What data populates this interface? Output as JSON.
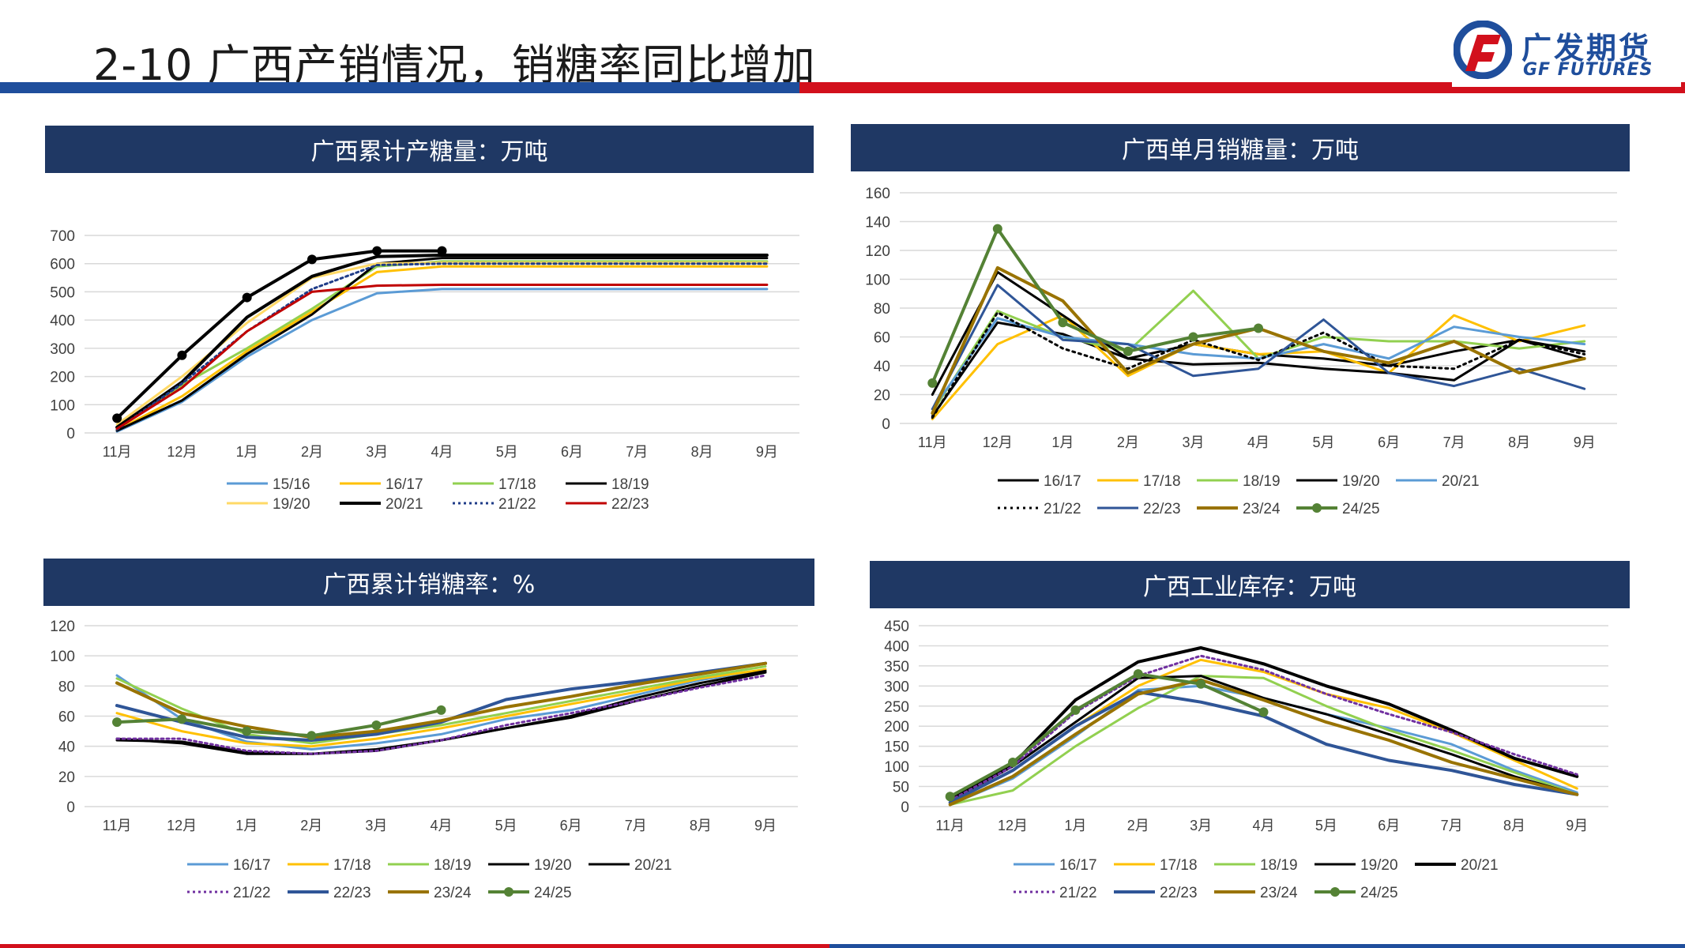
{
  "header": {
    "title": "2-10 广西产销情况，销糖率同比增加",
    "logo_cn": "广发期货",
    "logo_en": "GF FUTURES"
  },
  "colors": {
    "header_blue": "#1f4e9c",
    "header_red": "#d2101c",
    "panel_head": "#1f3864"
  },
  "chart_data": [
    {
      "id": "cum-production",
      "type": "line",
      "title": "广西累计产糖量：万吨",
      "categories": [
        "11月",
        "12月",
        "1月",
        "2月",
        "3月",
        "4月",
        "5月",
        "6月",
        "7月",
        "8月",
        "9月"
      ],
      "ylim": [
        0,
        700
      ],
      "yticks": [
        0,
        100,
        200,
        300,
        400,
        500,
        600,
        700
      ],
      "grid": true,
      "legend": "bottom",
      "series": [
        {
          "name": "15/16",
          "color": "#5b9bd5",
          "width": 3,
          "values": [
            5,
            110,
            270,
            400,
            495,
            510,
            510,
            510,
            510,
            510,
            510
          ]
        },
        {
          "name": "16/17",
          "color": "#ffc000",
          "width": 3,
          "values": [
            10,
            130,
            290,
            430,
            570,
            590,
            590,
            590,
            590,
            590,
            590
          ]
        },
        {
          "name": "17/18",
          "color": "#92d050",
          "width": 3,
          "values": [
            15,
            170,
            300,
            440,
            590,
            608,
            608,
            608,
            608,
            608,
            608
          ]
        },
        {
          "name": "18/19",
          "color": "#000000",
          "width": 3,
          "values": [
            8,
            115,
            280,
            420,
            600,
            620,
            620,
            620,
            620,
            620,
            620
          ]
        },
        {
          "name": "19/20",
          "color": "#ffd966",
          "width": 3,
          "values": [
            30,
            200,
            390,
            550,
            600,
            603,
            603,
            603,
            603,
            603,
            603
          ]
        },
        {
          "name": "20/21",
          "color": "#000000",
          "width": 4,
          "values": [
            20,
            180,
            410,
            555,
            625,
            630,
            630,
            630,
            630,
            630,
            630
          ]
        },
        {
          "name": "21/22",
          "color": "#1f3c88",
          "width": 3,
          "dash": "3,4",
          "values": [
            12,
            175,
            360,
            510,
            595,
            600,
            600,
            600,
            600,
            600,
            600
          ]
        },
        {
          "name": "22/23",
          "color": "#c00000",
          "width": 3,
          "values": [
            15,
            160,
            360,
            500,
            522,
            525,
            525,
            525,
            525,
            525,
            525
          ]
        },
        {
          "name": "",
          "color": "#000000",
          "width": 4,
          "markers": true,
          "legend": false,
          "values": [
            52,
            275,
            480,
            615,
            645,
            645,
            null,
            null,
            null,
            null,
            null
          ]
        }
      ]
    },
    {
      "id": "monthly-sales",
      "type": "line",
      "title": "广西单月销糖量：万吨",
      "categories": [
        "11月",
        "12月",
        "1月",
        "2月",
        "3月",
        "4月",
        "5月",
        "6月",
        "7月",
        "8月",
        "9月"
      ],
      "ylim": [
        0,
        160
      ],
      "yticks": [
        0,
        20,
        40,
        60,
        80,
        100,
        120,
        140,
        160
      ],
      "grid": true,
      "legend": "bottom",
      "series": [
        {
          "name": "16/17",
          "color": "#000000",
          "width": 3,
          "values": [
            5,
            70,
            62,
            45,
            55,
            48,
            45,
            40,
            50,
            58,
            45
          ]
        },
        {
          "name": "17/18",
          "color": "#ffc000",
          "width": 3,
          "values": [
            3,
            55,
            75,
            33,
            55,
            48,
            50,
            35,
            75,
            57,
            68
          ]
        },
        {
          "name": "18/19",
          "color": "#92d050",
          "width": 3,
          "values": [
            8,
            78,
            60,
            50,
            92,
            45,
            60,
            57,
            57,
            52,
            57
          ]
        },
        {
          "name": "19/20",
          "color": "#000000",
          "width": 3,
          "values": [
            20,
            105,
            75,
            45,
            41,
            42,
            38,
            35,
            30,
            58,
            50
          ]
        },
        {
          "name": "20/21",
          "color": "#5b9bd5",
          "width": 3,
          "values": [
            10,
            73,
            60,
            55,
            48,
            45,
            55,
            45,
            67,
            60,
            55
          ]
        },
        {
          "name": "21/22",
          "color": "#000000",
          "width": 3,
          "dash": "3,5",
          "values": [
            4,
            77,
            52,
            38,
            58,
            44,
            63,
            40,
            38,
            58,
            48
          ]
        },
        {
          "name": "22/23",
          "color": "#2f5597",
          "width": 3,
          "values": [
            10,
            96,
            58,
            55,
            33,
            38,
            72,
            35,
            26,
            38,
            24
          ]
        },
        {
          "name": "23/24",
          "color": "#997300",
          "width": 4,
          "values": [
            7,
            108,
            85,
            35,
            55,
            66,
            50,
            42,
            57,
            35,
            45
          ]
        },
        {
          "name": "24/25",
          "color": "#548235",
          "width": 4,
          "markers": true,
          "values": [
            28,
            135,
            70,
            50,
            60,
            66,
            null,
            null,
            null,
            null,
            null
          ]
        }
      ]
    },
    {
      "id": "cum-sales-rate",
      "type": "line",
      "title": "广西累计销糖率：%",
      "categories": [
        "11月",
        "12月",
        "1月",
        "2月",
        "3月",
        "4月",
        "5月",
        "6月",
        "7月",
        "8月",
        "9月"
      ],
      "ylim": [
        0,
        120
      ],
      "yticks": [
        0,
        20,
        40,
        60,
        80,
        100,
        120
      ],
      "grid": true,
      "legend": "bottom",
      "series": [
        {
          "name": "16/17",
          "color": "#5b9bd5",
          "width": 3,
          "values": [
            87,
            58,
            43,
            38,
            42,
            48,
            58,
            64,
            74,
            84,
            91
          ]
        },
        {
          "name": "17/18",
          "color": "#ffc000",
          "width": 3,
          "values": [
            62,
            50,
            42,
            40,
            45,
            52,
            60,
            68,
            76,
            85,
            91
          ]
        },
        {
          "name": "18/19",
          "color": "#92d050",
          "width": 3,
          "values": [
            85,
            65,
            48,
            42,
            48,
            54,
            62,
            70,
            78,
            86,
            93
          ]
        },
        {
          "name": "19/20",
          "color": "#000000",
          "width": 3,
          "values": [
            45,
            42,
            35,
            35,
            38,
            44,
            52,
            60,
            72,
            82,
            90
          ]
        },
        {
          "name": "20/21",
          "color": "#000000",
          "width": 3,
          "values": [
            44,
            43,
            36,
            35,
            37,
            44,
            52,
            59,
            70,
            80,
            89
          ]
        },
        {
          "name": "21/22",
          "color": "#7030a0",
          "width": 3,
          "dash": "3,4",
          "values": [
            45,
            45,
            37,
            35,
            37,
            44,
            54,
            62,
            70,
            79,
            87
          ]
        },
        {
          "name": "22/23",
          "color": "#2f5597",
          "width": 4,
          "values": [
            67,
            56,
            46,
            44,
            48,
            56,
            71,
            78,
            83,
            89,
            95
          ]
        },
        {
          "name": "23/24",
          "color": "#997300",
          "width": 4,
          "values": [
            82,
            62,
            53,
            46,
            50,
            57,
            66,
            73,
            81,
            88,
            95
          ]
        },
        {
          "name": "24/25",
          "color": "#548235",
          "width": 4,
          "markers": true,
          "values": [
            56,
            58,
            50,
            47,
            54,
            64,
            null,
            null,
            null,
            null,
            null
          ]
        }
      ]
    },
    {
      "id": "industrial-stock",
      "type": "line",
      "title": "广西工业库存：万吨",
      "categories": [
        "11月",
        "12月",
        "1月",
        "2月",
        "3月",
        "4月",
        "5月",
        "6月",
        "7月",
        "8月",
        "9月"
      ],
      "ylim": [
        0,
        450
      ],
      "yticks": [
        0,
        50,
        100,
        150,
        200,
        250,
        300,
        350,
        400,
        450
      ],
      "grid": true,
      "legend": "bottom",
      "series": [
        {
          "name": "16/17",
          "color": "#5b9bd5",
          "width": 3,
          "values": [
            5,
            70,
            175,
            290,
            300,
            270,
            230,
            195,
            155,
            90,
            35
          ]
        },
        {
          "name": "17/18",
          "color": "#ffc000",
          "width": 3,
          "values": [
            10,
            90,
            200,
            300,
            365,
            335,
            280,
            245,
            185,
            115,
            45
          ]
        },
        {
          "name": "18/19",
          "color": "#92d050",
          "width": 3,
          "values": [
            5,
            40,
            150,
            245,
            325,
            320,
            250,
            190,
            140,
            85,
            30
          ]
        },
        {
          "name": "19/20",
          "color": "#000000",
          "width": 3,
          "values": [
            15,
            100,
            210,
            320,
            325,
            270,
            230,
            180,
            130,
            75,
            30
          ]
        },
        {
          "name": "20/21",
          "color": "#000000",
          "width": 4,
          "values": [
            20,
            105,
            265,
            360,
            395,
            355,
            300,
            255,
            190,
            120,
            75
          ]
        },
        {
          "name": "21/22",
          "color": "#7030a0",
          "width": 3,
          "dash": "3,4",
          "values": [
            15,
            100,
            235,
            325,
            375,
            340,
            280,
            230,
            185,
            130,
            80
          ]
        },
        {
          "name": "22/23",
          "color": "#2f5597",
          "width": 4,
          "values": [
            10,
            90,
            200,
            285,
            260,
            225,
            155,
            115,
            90,
            55,
            30
          ]
        },
        {
          "name": "23/24",
          "color": "#997300",
          "width": 4,
          "values": [
            5,
            75,
            180,
            280,
            315,
            265,
            210,
            165,
            110,
            70,
            30
          ]
        },
        {
          "name": "24/25",
          "color": "#548235",
          "width": 4,
          "markers": true,
          "values": [
            25,
            110,
            240,
            330,
            305,
            235,
            null,
            null,
            null,
            null,
            null
          ]
        }
      ]
    }
  ]
}
